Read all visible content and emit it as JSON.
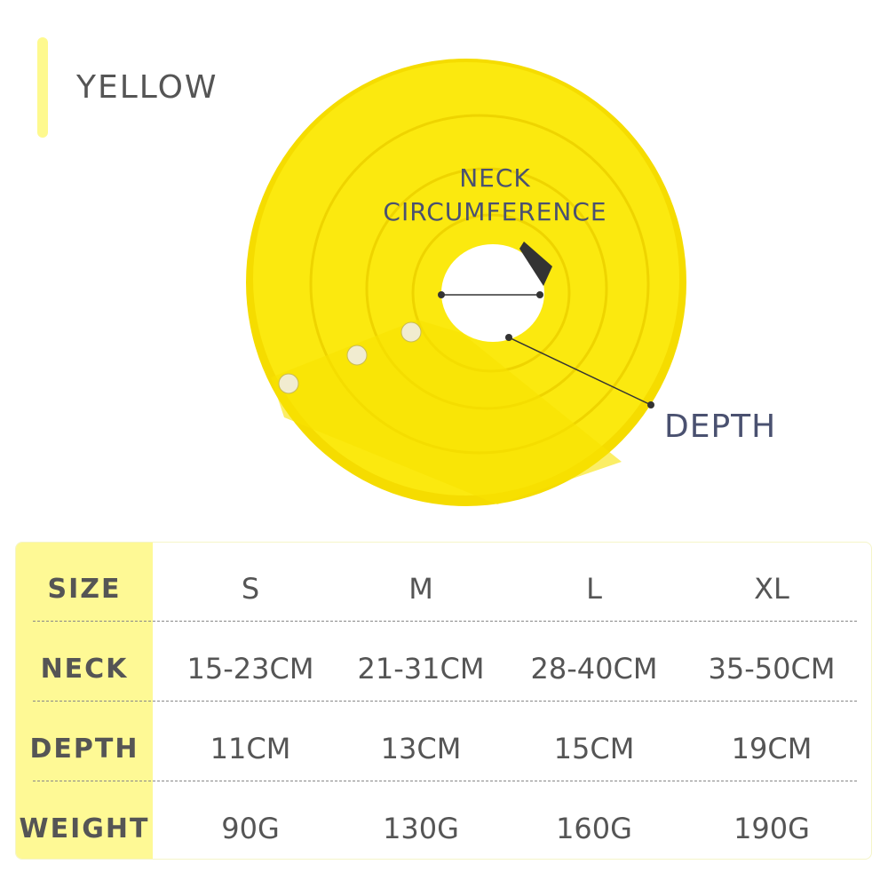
{
  "color_label": "YELLOW",
  "colors": {
    "product": "#fbe90f",
    "accent": "#fef995",
    "label": "#4a5170"
  },
  "annotations": {
    "neck_line1": "NECK",
    "neck_line2": "CIRCUMFERENCE",
    "depth": "DEPTH"
  },
  "table": {
    "headers": [
      "SIZE",
      "NECK",
      "DEPTH",
      "WEIGHT"
    ],
    "rows": [
      [
        "S",
        "M",
        "L",
        "XL"
      ],
      [
        "15-23CM",
        "21-31CM",
        "28-40CM",
        "35-50CM"
      ],
      [
        "11CM",
        "13CM",
        "15CM",
        "19CM"
      ],
      [
        "90G",
        "130G",
        "160G",
        "190G"
      ]
    ]
  }
}
